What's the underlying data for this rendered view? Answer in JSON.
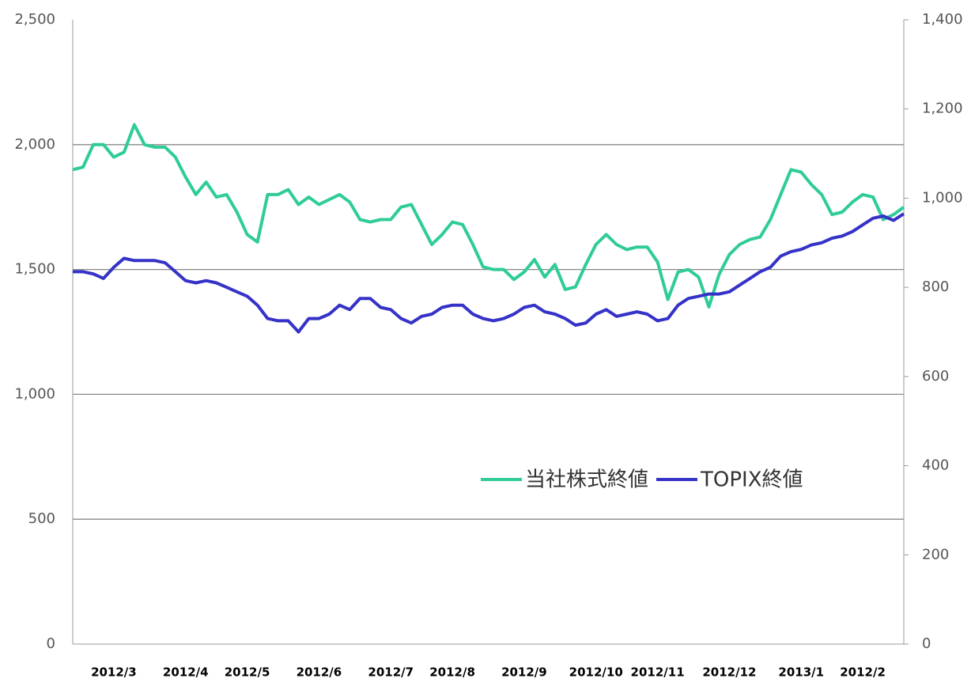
{
  "chart_data": {
    "type": "line",
    "categories": [
      null,
      null,
      null,
      null,
      "2012/3",
      null,
      null,
      null,
      null,
      null,
      null,
      "2012/4",
      null,
      null,
      null,
      null,
      null,
      "2012/5",
      null,
      null,
      null,
      null,
      null,
      null,
      "2012/6",
      null,
      null,
      null,
      null,
      null,
      null,
      "2012/7",
      null,
      null,
      null,
      null,
      null,
      "2012/8",
      null,
      null,
      null,
      null,
      null,
      null,
      "2012/9",
      null,
      null,
      null,
      null,
      null,
      null,
      "2012/10",
      null,
      null,
      null,
      null,
      null,
      "2012/11",
      null,
      null,
      null,
      null,
      null,
      null,
      "2012/12",
      null,
      null,
      null,
      null,
      null,
      null,
      "2013/1",
      null,
      null,
      null,
      null,
      null,
      "2012/2",
      null,
      null,
      null,
      null
    ],
    "series": [
      {
        "name": "当社株式終値",
        "color": "#2fcc98",
        "axis": "y",
        "values": [
          1900,
          1910,
          2000,
          2000,
          1950,
          1970,
          2080,
          2000,
          1990,
          1990,
          1950,
          1870,
          1800,
          1850,
          1790,
          1800,
          1730,
          1640,
          1610,
          1800,
          1800,
          1820,
          1760,
          1790,
          1760,
          1780,
          1800,
          1770,
          1700,
          1690,
          1700,
          1700,
          1750,
          1760,
          1680,
          1600,
          1640,
          1690,
          1680,
          1600,
          1510,
          1500,
          1500,
          1460,
          1490,
          1540,
          1470,
          1520,
          1420,
          1430,
          1520,
          1600,
          1640,
          1600,
          1580,
          1590,
          1590,
          1530,
          1380,
          1490,
          1500,
          1470,
          1350,
          1480,
          1560,
          1600,
          1620,
          1630,
          1700,
          1800,
          1900,
          1890,
          1840,
          1800,
          1720,
          1730,
          1770,
          1800,
          1790,
          1700,
          1720,
          1750
        ]
      },
      {
        "name": "TOPIX終値",
        "color": "#3532c8",
        "axis": "y2",
        "values": [
          835,
          835,
          830,
          820,
          845,
          865,
          860,
          860,
          860,
          855,
          835,
          815,
          810,
          815,
          810,
          800,
          790,
          780,
          760,
          730,
          725,
          725,
          700,
          730,
          730,
          740,
          760,
          750,
          775,
          775,
          755,
          750,
          730,
          720,
          735,
          740,
          755,
          760,
          760,
          740,
          730,
          725,
          730,
          740,
          755,
          760,
          745,
          740,
          730,
          715,
          720,
          740,
          750,
          735,
          740,
          745,
          740,
          725,
          730,
          760,
          775,
          780,
          785,
          785,
          790,
          805,
          820,
          835,
          845,
          870,
          880,
          885,
          895,
          900,
          910,
          915,
          925,
          940,
          955,
          960,
          950,
          965
        ]
      }
    ],
    "ylim": [
      0,
      2500
    ],
    "yticks": [
      0,
      500,
      {
        "value": 1000,
        "label": "1,000"
      },
      {
        "value": 1500,
        "label": "1,500"
      },
      {
        "value": 2000,
        "label": "2,000"
      },
      {
        "value": 2500,
        "label": "2,500"
      }
    ],
    "y2lim": [
      0,
      1400
    ],
    "y2ticks": [
      0,
      200,
      400,
      600,
      800,
      {
        "value": 1000,
        "label": "1,000"
      },
      {
        "value": 1200,
        "label": "1,200"
      },
      {
        "value": 1400,
        "label": "1,400"
      }
    ],
    "grid": true
  }
}
